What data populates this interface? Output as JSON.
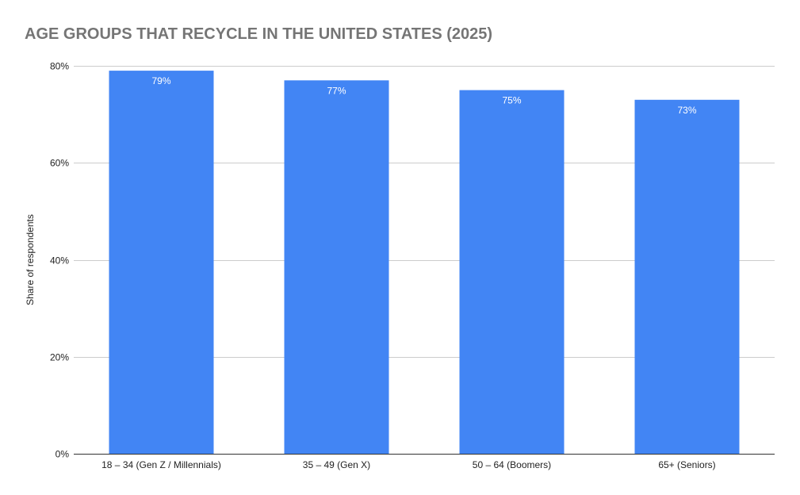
{
  "chart_data": {
    "type": "bar",
    "title": "AGE GROUPS THAT RECYCLE IN THE UNITED STATES (2025)",
    "xlabel": "",
    "ylabel": "Share of respondents",
    "categories": [
      "18 – 34 (Gen Z / Millennials)",
      "35 – 49 (Gen X)",
      "50 – 64 (Boomers)",
      "65+ (Seniors)"
    ],
    "values": [
      79,
      77,
      75,
      73
    ],
    "data_labels": [
      "79%",
      "77%",
      "75%",
      "73%"
    ],
    "ylim": [
      0,
      80
    ],
    "yticks": [
      0,
      20,
      40,
      60,
      80
    ],
    "ytick_labels": [
      "0%",
      "20%",
      "40%",
      "60%",
      "80%"
    ],
    "grid": true,
    "legend": "none",
    "bar_color": "#4285f4"
  }
}
